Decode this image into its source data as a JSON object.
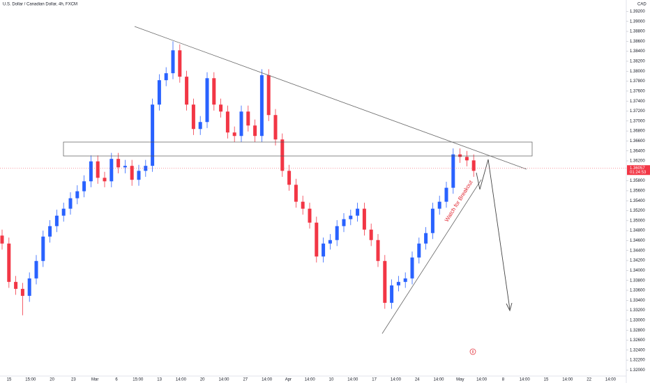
{
  "chart_data": {
    "type": "candlestick",
    "title": "U.S. Dollar / Canadian Dollar, 4h, FXCM",
    "currency": "CAD",
    "annotation": "Watch for Breakout",
    "countdown": "01:24:53",
    "event_marker": "8",
    "last_price": {
      "value": 1.36057,
      "label": "1.36057"
    },
    "up_color": "#2962ff",
    "down_color": "#f23645",
    "grid": false,
    "ylim": [
      1.3188,
      1.3943
    ],
    "yticks": [
      {
        "value": 1.32,
        "label": "1.32000"
      },
      {
        "value": 1.322,
        "label": "1.32200"
      },
      {
        "value": 1.324,
        "label": "1.32400"
      },
      {
        "value": 1.326,
        "label": "1.32600"
      },
      {
        "value": 1.328,
        "label": "1.32800"
      },
      {
        "value": 1.33,
        "label": "1.33000"
      },
      {
        "value": 1.332,
        "label": "1.33200"
      },
      {
        "value": 1.334,
        "label": "1.33400"
      },
      {
        "value": 1.336,
        "label": "1.33600"
      },
      {
        "value": 1.338,
        "label": "1.33800"
      },
      {
        "value": 1.34,
        "label": "1.34000"
      },
      {
        "value": 1.342,
        "label": "1.34200"
      },
      {
        "value": 1.344,
        "label": "1.34400"
      },
      {
        "value": 1.346,
        "label": "1.34600"
      },
      {
        "value": 1.348,
        "label": "1.34800"
      },
      {
        "value": 1.35,
        "label": "1.35000"
      },
      {
        "value": 1.352,
        "label": "1.35200"
      },
      {
        "value": 1.354,
        "label": "1.35400"
      },
      {
        "value": 1.356,
        "label": "1.35600"
      },
      {
        "value": 1.358,
        "label": "1.35800"
      },
      {
        "value": 1.362,
        "label": "1.36200"
      },
      {
        "value": 1.364,
        "label": "1.36400"
      },
      {
        "value": 1.366,
        "label": "1.36600"
      },
      {
        "value": 1.368,
        "label": "1.36800"
      },
      {
        "value": 1.37,
        "label": "1.37000"
      },
      {
        "value": 1.372,
        "label": "1.37200"
      },
      {
        "value": 1.374,
        "label": "1.37400"
      },
      {
        "value": 1.376,
        "label": "1.37600"
      },
      {
        "value": 1.378,
        "label": "1.37800"
      },
      {
        "value": 1.38,
        "label": "1.38000"
      },
      {
        "value": 1.382,
        "label": "1.38200"
      },
      {
        "value": 1.384,
        "label": "1.38400"
      },
      {
        "value": 1.386,
        "label": "1.38600"
      },
      {
        "value": 1.388,
        "label": "1.38800"
      },
      {
        "value": 1.39,
        "label": "1.39000"
      },
      {
        "value": 1.392,
        "label": "1.39200"
      }
    ],
    "x_labels": [
      "15",
      "15:00",
      "20",
      "23",
      "Mar",
      "6",
      "15:00",
      "13",
      "14:00",
      "20",
      "14:00",
      "27",
      "14:00",
      "Apr",
      "14:00",
      "10",
      "14:00",
      "17",
      "14:00",
      "24",
      "14:00",
      "May",
      "14:00",
      "8",
      "14:00",
      "15",
      "14:00",
      "22",
      "14:00"
    ],
    "open": [
      1.347,
      1.3454,
      1.3377,
      1.3363,
      1.3349,
      1.3384,
      1.3419,
      1.3468,
      1.3489,
      1.351,
      1.3524,
      1.3545,
      1.3559,
      1.3579,
      1.3619,
      1.3586,
      1.3579,
      1.3624,
      1.3607,
      1.361,
      1.3582,
      1.36,
      1.361,
      1.3733,
      1.3782,
      1.3796,
      1.3842,
      1.3789,
      1.3733,
      1.3684,
      1.3698,
      1.3786,
      1.3733,
      1.3719,
      1.3677,
      1.367,
      1.3719,
      1.3691,
      1.367,
      1.3792,
      1.3712,
      1.3663,
      1.36,
      1.3572,
      1.3538,
      1.3524,
      1.3496,
      1.3428,
      1.3454,
      1.3461,
      1.3489,
      1.3503,
      1.351,
      1.3524,
      1.3482,
      1.3461,
      1.3419,
      1.3335,
      1.337,
      1.3377,
      1.3384,
      1.3426,
      1.3454,
      1.3475,
      1.3524,
      1.3538,
      1.3566,
      1.3633,
      1.3628,
      1.3621
    ],
    "high": [
      1.3482,
      1.3466,
      1.3389,
      1.3375,
      1.3396,
      1.3431,
      1.348,
      1.3501,
      1.3522,
      1.3536,
      1.3557,
      1.3571,
      1.3591,
      1.3631,
      1.3631,
      1.3598,
      1.3636,
      1.3636,
      1.3622,
      1.3622,
      1.3612,
      1.3622,
      1.3745,
      1.3794,
      1.3808,
      1.386,
      1.3854,
      1.3801,
      1.3745,
      1.371,
      1.3798,
      1.3798,
      1.3745,
      1.3731,
      1.3689,
      1.3731,
      1.3731,
      1.3703,
      1.3804,
      1.3804,
      1.3724,
      1.3675,
      1.3612,
      1.3584,
      1.355,
      1.3536,
      1.3508,
      1.3466,
      1.3473,
      1.3501,
      1.3515,
      1.3522,
      1.3536,
      1.3536,
      1.3494,
      1.3473,
      1.3431,
      1.3382,
      1.3389,
      1.3396,
      1.3438,
      1.3466,
      1.3487,
      1.3536,
      1.355,
      1.3578,
      1.3645,
      1.3645,
      1.364,
      1.3633
    ],
    "low": [
      1.3442,
      1.3365,
      1.3351,
      1.331,
      1.3337,
      1.3372,
      1.3407,
      1.3456,
      1.3477,
      1.3498,
      1.3512,
      1.3533,
      1.3547,
      1.3567,
      1.3574,
      1.3567,
      1.3567,
      1.3595,
      1.3595,
      1.357,
      1.357,
      1.3588,
      1.3598,
      1.3721,
      1.377,
      1.3784,
      1.3777,
      1.3721,
      1.3672,
      1.3672,
      1.3686,
      1.3721,
      1.3707,
      1.3665,
      1.3658,
      1.3658,
      1.3679,
      1.3658,
      1.3658,
      1.37,
      1.3651,
      1.3588,
      1.356,
      1.3526,
      1.3512,
      1.3484,
      1.3416,
      1.3416,
      1.3442,
      1.3449,
      1.3477,
      1.3491,
      1.3498,
      1.347,
      1.3449,
      1.3407,
      1.3323,
      1.3323,
      1.3358,
      1.3365,
      1.3372,
      1.3414,
      1.3442,
      1.3463,
      1.3512,
      1.3526,
      1.3554,
      1.3616,
      1.3609,
      1.3588
    ],
    "close": [
      1.3454,
      1.3377,
      1.3363,
      1.3349,
      1.3384,
      1.3419,
      1.3468,
      1.3489,
      1.351,
      1.3524,
      1.3545,
      1.3559,
      1.3579,
      1.3619,
      1.3586,
      1.3579,
      1.3624,
      1.3607,
      1.361,
      1.3582,
      1.36,
      1.361,
      1.3733,
      1.3782,
      1.3796,
      1.3842,
      1.3789,
      1.3733,
      1.3684,
      1.3698,
      1.3786,
      1.3733,
      1.3719,
      1.3677,
      1.367,
      1.3719,
      1.3691,
      1.367,
      1.3792,
      1.3712,
      1.3663,
      1.36,
      1.3572,
      1.3538,
      1.3524,
      1.3496,
      1.3428,
      1.3454,
      1.3461,
      1.3489,
      1.3503,
      1.351,
      1.3524,
      1.3482,
      1.3461,
      1.3419,
      1.3335,
      1.337,
      1.3377,
      1.3384,
      1.3426,
      1.3454,
      1.3475,
      1.3524,
      1.3538,
      1.3566,
      1.3633,
      1.3628,
      1.3621,
      1.36
    ]
  }
}
